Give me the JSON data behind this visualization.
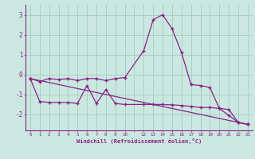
{
  "background_color": "#cbe8e0",
  "grid_color": "#a8cfc4",
  "line_color": "#882288",
  "marker_color": "#882288",
  "xlabel": "Windchill (Refroidissement éolien,°C)",
  "xlim": [
    -0.5,
    23.5
  ],
  "ylim": [
    -2.8,
    3.5
  ],
  "yticks": [
    -2,
    -1,
    0,
    1,
    2,
    3
  ],
  "xtick_labels": [
    "0",
    "1",
    "2",
    "3",
    "4",
    "5",
    "6",
    "7",
    "8",
    "9",
    "10",
    "",
    "12",
    "13",
    "14",
    "15",
    "16",
    "17",
    "18",
    "19",
    "20",
    "21",
    "22",
    "23"
  ],
  "series": [
    [
      [
        0,
        -0.2
      ],
      [
        1,
        -0.35
      ],
      [
        2,
        -0.2
      ],
      [
        3,
        -0.25
      ],
      [
        4,
        -0.2
      ],
      [
        5,
        -0.3
      ],
      [
        6,
        -0.2
      ],
      [
        7,
        -0.2
      ],
      [
        8,
        -0.3
      ],
      [
        9,
        -0.2
      ],
      [
        10,
        -0.15
      ],
      [
        12,
        1.2
      ],
      [
        13,
        2.75
      ],
      [
        14,
        3.0
      ],
      [
        15,
        2.3
      ],
      [
        16,
        1.1
      ],
      [
        17,
        -0.5
      ],
      [
        18,
        -0.55
      ],
      [
        19,
        -0.65
      ],
      [
        20,
        -1.7
      ],
      [
        21,
        -2.05
      ],
      [
        22,
        -2.4
      ],
      [
        23,
        -2.5
      ]
    ],
    [
      [
        0,
        -0.2
      ],
      [
        1,
        -1.35
      ],
      [
        2,
        -1.4
      ],
      [
        3,
        -1.4
      ],
      [
        4,
        -1.4
      ],
      [
        5,
        -1.45
      ],
      [
        6,
        -0.55
      ],
      [
        7,
        -1.45
      ],
      [
        8,
        -0.75
      ],
      [
        9,
        -1.45
      ],
      [
        10,
        -1.5
      ],
      [
        12,
        -1.5
      ],
      [
        13,
        -1.5
      ],
      [
        14,
        -1.5
      ],
      [
        15,
        -1.52
      ],
      [
        16,
        -1.55
      ],
      [
        17,
        -1.6
      ],
      [
        18,
        -1.65
      ],
      [
        19,
        -1.65
      ],
      [
        20,
        -1.7
      ],
      [
        21,
        -1.75
      ],
      [
        22,
        -2.4
      ],
      [
        23,
        -2.5
      ]
    ],
    [
      [
        0,
        -0.2
      ],
      [
        23,
        -2.5
      ]
    ]
  ]
}
